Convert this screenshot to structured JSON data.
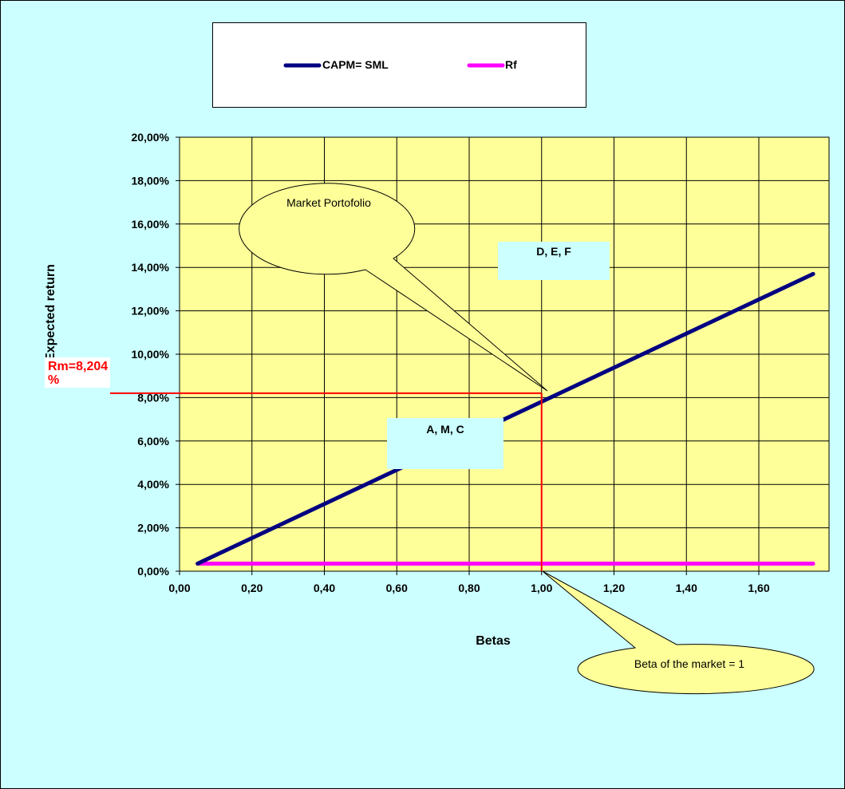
{
  "chart_data": {
    "type": "line",
    "xlabel": "Betas",
    "ylabel": "Expected return",
    "xlim": [
      0,
      1.76
    ],
    "ylim": [
      0,
      0.2
    ],
    "x_ticks": [
      "0,00",
      "0,20",
      "0,40",
      "0,60",
      "0,80",
      "1,00",
      "1,20",
      "1,40",
      "1,60"
    ],
    "y_ticks": [
      "0,00%",
      "2,00%",
      "4,00%",
      "6,00%",
      "8,00%",
      "10,00%",
      "12,00%",
      "14,00%",
      "16,00%",
      "18,00%",
      "20,00%"
    ],
    "grid": true,
    "legend_position": "top",
    "series": [
      {
        "name": "CAPM=  SML",
        "color": "#000080",
        "x": [
          0.05,
          1.75
        ],
        "y": [
          0.0035,
          0.137
        ]
      },
      {
        "name": "Rf",
        "color": "#ff00ff",
        "x": [
          0.05,
          1.75
        ],
        "y": [
          0.0035,
          0.0035
        ]
      }
    ],
    "reference_lines": {
      "market_return": 0.08204,
      "market_beta": 1.0,
      "color": "#ff0000"
    },
    "annotations": {
      "rm_label_1": "Rm=8,204",
      "rm_label_2": "%",
      "market_portfolio": "Market  Portofolio",
      "beta_market": "Beta  of the market  = 1",
      "box_upper": "D, E, F",
      "box_lower": "A, M, C"
    },
    "colors": {
      "plot_background": "#ffff99",
      "page_background": "#ccffff",
      "callout_fill": "#ffff99",
      "box_fill": "#ccffff"
    }
  }
}
